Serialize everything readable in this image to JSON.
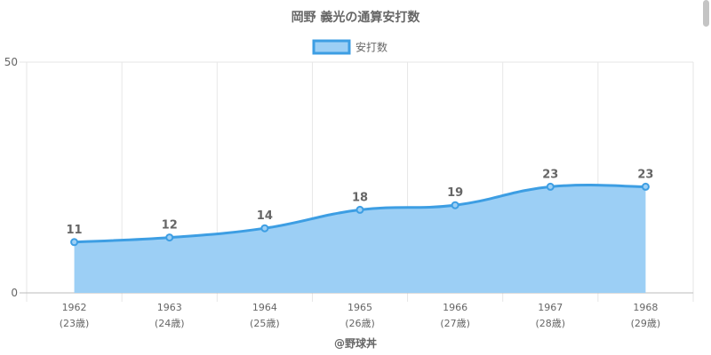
{
  "chart_data": {
    "type": "area",
    "title": "岡野 義光の通算安打数",
    "legend": {
      "label": "安打数",
      "position": "top"
    },
    "categories": [
      "1962",
      "1963",
      "1964",
      "1965",
      "1966",
      "1967",
      "1968"
    ],
    "age_labels": [
      "(23歳)",
      "(24歳)",
      "(25歳)",
      "(26歳)",
      "(27歳)",
      "(28歳)",
      "(29歳)"
    ],
    "series": [
      {
        "name": "安打数",
        "values": [
          11,
          12,
          14,
          18,
          19,
          23,
          23
        ]
      }
    ],
    "ylim": [
      0,
      50
    ],
    "y_ticks": [
      0,
      50
    ],
    "grid": true,
    "xlabel": "@野球丼",
    "ylabel": "",
    "colors": {
      "line": "#3d9ee3",
      "fill": "#9ccff5",
      "grid": "#e6e6e6",
      "text": "#666666"
    }
  }
}
